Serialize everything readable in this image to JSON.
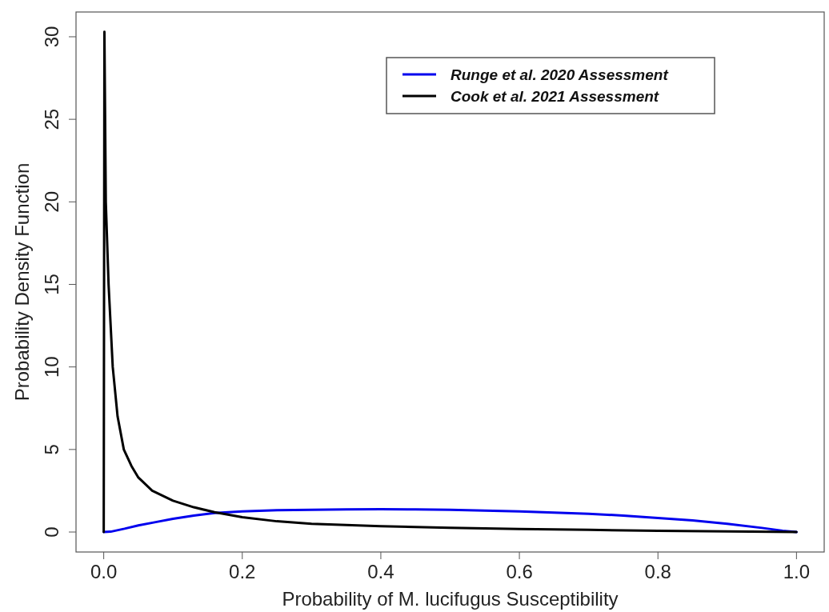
{
  "chart_data": {
    "type": "line",
    "xlabel": "Probability of M. lucifugus Susceptibility",
    "ylabel": "Probability Density Function",
    "xlim": [
      -0.04,
      1.04
    ],
    "ylim": [
      -1.21,
      31.5
    ],
    "xticks": [
      {
        "value": 0,
        "label": "0.0"
      },
      {
        "value": 0.2,
        "label": "0.2"
      },
      {
        "value": 0.4,
        "label": "0.4"
      },
      {
        "value": 0.6,
        "label": "0.6"
      },
      {
        "value": 0.8,
        "label": "0.8"
      },
      {
        "value": 1,
        "label": "1.0"
      }
    ],
    "yticks": [
      0,
      5,
      10,
      15,
      20,
      25,
      30
    ],
    "legend": "top right",
    "grid": false,
    "line_style": "solid",
    "marker": "none",
    "series": [
      {
        "name": "Runge et al. 2020 Assessment",
        "color": "#0000ee",
        "x": [
          0,
          0.01,
          0.03,
          0.05,
          0.075,
          0.1,
          0.13,
          0.16,
          0.2,
          0.25,
          0.3,
          0.35,
          0.4,
          0.45,
          0.5,
          0.55,
          0.6,
          0.65,
          0.7,
          0.75,
          0.8,
          0.85,
          0.9,
          0.95,
          0.98,
          1
        ],
        "values": [
          0,
          0.02,
          0.2,
          0.4,
          0.6,
          0.8,
          1.0,
          1.15,
          1.25,
          1.32,
          1.35,
          1.37,
          1.38,
          1.37,
          1.35,
          1.3,
          1.25,
          1.18,
          1.1,
          1.0,
          0.85,
          0.7,
          0.5,
          0.25,
          0.08,
          0
        ]
      },
      {
        "name": "Cook et al. 2021 Assessment",
        "color": "#000000",
        "x": [
          0,
          0.001,
          0.003,
          0.007,
          0.013,
          0.02,
          0.029,
          0.04,
          0.05,
          0.07,
          0.1,
          0.13,
          0.16,
          0.2,
          0.25,
          0.3,
          0.4,
          0.5,
          0.6,
          0.7,
          0.8,
          0.9,
          1
        ],
        "values": [
          0,
          30.3,
          20,
          15,
          10,
          7,
          5,
          4,
          3.3,
          2.5,
          1.9,
          1.5,
          1.2,
          0.9,
          0.65,
          0.5,
          0.35,
          0.25,
          0.18,
          0.13,
          0.08,
          0.04,
          0
        ]
      }
    ]
  }
}
